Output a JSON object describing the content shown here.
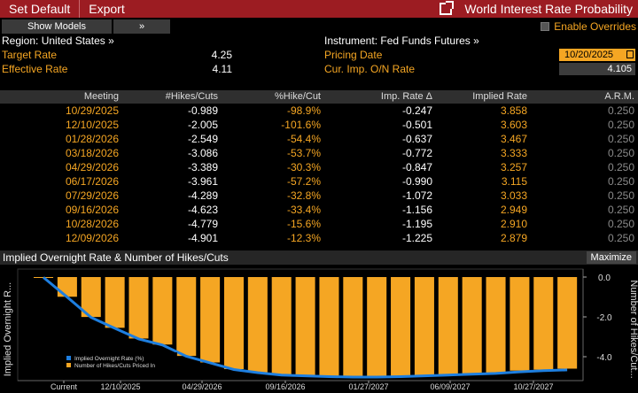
{
  "toolbar": {
    "set_default": "Set Default",
    "export": "Export",
    "title": "World Interest Rate Probability"
  },
  "controls": {
    "show_models": "Show Models",
    "chevron": "»",
    "enable_overrides": "Enable Overrides"
  },
  "info": {
    "region_label": "Region: United States »",
    "target_rate_label": "Target Rate",
    "target_rate_value": "4.25",
    "effective_rate_label": "Effective Rate",
    "effective_rate_value": "4.11",
    "instrument_label": "Instrument: Fed Funds Futures »",
    "pricing_date_label": "Pricing Date",
    "pricing_date_value": "10/20/2025",
    "cur_imp_label": "Cur. Imp. O/N Rate",
    "cur_imp_value": "4.105"
  },
  "table": {
    "headers": [
      "Meeting",
      "#Hikes/Cuts",
      "%Hike/Cut",
      "Imp. Rate Δ",
      "Implied Rate",
      "A.R.M."
    ],
    "rows": [
      [
        "10/29/2025",
        "-0.989",
        "-98.9%",
        "-0.247",
        "3.858",
        "0.250"
      ],
      [
        "12/10/2025",
        "-2.005",
        "-101.6%",
        "-0.501",
        "3.603",
        "0.250"
      ],
      [
        "01/28/2026",
        "-2.549",
        "-54.4%",
        "-0.637",
        "3.467",
        "0.250"
      ],
      [
        "03/18/2026",
        "-3.086",
        "-53.7%",
        "-0.772",
        "3.333",
        "0.250"
      ],
      [
        "04/29/2026",
        "-3.389",
        "-30.3%",
        "-0.847",
        "3.257",
        "0.250"
      ],
      [
        "06/17/2026",
        "-3.961",
        "-57.2%",
        "-0.990",
        "3.115",
        "0.250"
      ],
      [
        "07/29/2026",
        "-4.289",
        "-32.8%",
        "-1.072",
        "3.033",
        "0.250"
      ],
      [
        "09/16/2026",
        "-4.623",
        "-33.4%",
        "-1.156",
        "2.949",
        "0.250"
      ],
      [
        "10/28/2026",
        "-4.779",
        "-15.6%",
        "-1.195",
        "2.910",
        "0.250"
      ],
      [
        "12/09/2026",
        "-4.901",
        "-12.3%",
        "-1.225",
        "2.879",
        "0.250"
      ]
    ]
  },
  "chart_panel": {
    "title": "Implied Overnight Rate & Number of Hikes/Cuts",
    "maximize": "Maximize"
  },
  "chart_data": {
    "type": "bar",
    "title": "Implied Overnight Rate & Number of Hikes/Cuts",
    "ylabel_left": "Implied Overnight R...",
    "ylabel_right": "Number of Hikes/Cut...",
    "ylim_right": [
      -5.2,
      0.4
    ],
    "ylim_left": [
      2.81,
      4.21
    ],
    "right_ticks": [
      "0.0",
      "-2.0",
      "-4.0"
    ],
    "x_tick_labels": [
      "Current",
      "12/10/2025",
      "04/29/2026",
      "09/16/2026",
      "01/27/2027",
      "06/09/2027",
      "10/27/2027"
    ],
    "bar_color": "#f5a623",
    "line_color": "#1e7fe0",
    "legend": [
      "Implied Overnight Rate (%)",
      "Number of Hikes/Cuts Priced In"
    ],
    "legend_position": "bottom-left",
    "bars": [
      0,
      -0.989,
      -2.005,
      -2.549,
      -3.086,
      -3.389,
      -3.961,
      -4.289,
      -4.623,
      -4.779,
      -4.901,
      -4.95,
      -4.99,
      -5.0,
      -5.0,
      -4.98,
      -4.95,
      -4.9,
      -4.85,
      -4.8,
      -4.7,
      -4.65,
      -4.6
    ],
    "line": [
      4.105,
      3.858,
      3.603,
      3.467,
      3.333,
      3.257,
      3.115,
      3.033,
      2.949,
      2.91,
      2.879,
      2.87,
      2.86,
      2.855,
      2.855,
      2.86,
      2.87,
      2.88,
      2.89,
      2.9,
      2.92,
      2.935,
      2.945
    ]
  }
}
